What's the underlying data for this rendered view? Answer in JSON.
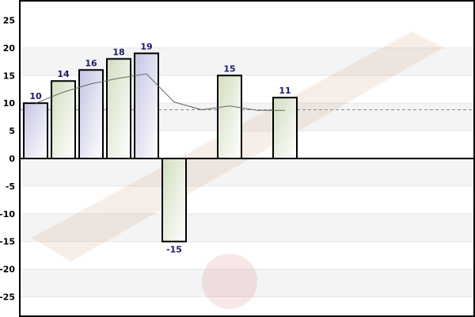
{
  "chart_data": {
    "type": "bar",
    "title": "",
    "xlabel": "",
    "ylabel": "",
    "ylim": [
      -28.5,
      28.5
    ],
    "yticks": [
      -25,
      -20,
      -15,
      -10,
      -5,
      0,
      5,
      10,
      15,
      20,
      25
    ],
    "grid": "horizontal bands",
    "values": [
      10,
      14,
      16,
      18,
      19,
      -15,
      null,
      15,
      null,
      11
    ],
    "bar_colors": [
      "#c4c4e4",
      "#d2dec0",
      "#c4c4e4",
      "#d2dec0",
      "#c4c4e4",
      "#d2dec0",
      null,
      "#d2dec0",
      null,
      "#d2dec0"
    ],
    "trend_line": [
      10,
      12,
      13.5,
      14.5,
      15.3,
      10.2,
      8.8,
      9.5,
      8.7,
      8.7
    ],
    "average_line": 8.8,
    "label_color": "#1a1a6e"
  }
}
